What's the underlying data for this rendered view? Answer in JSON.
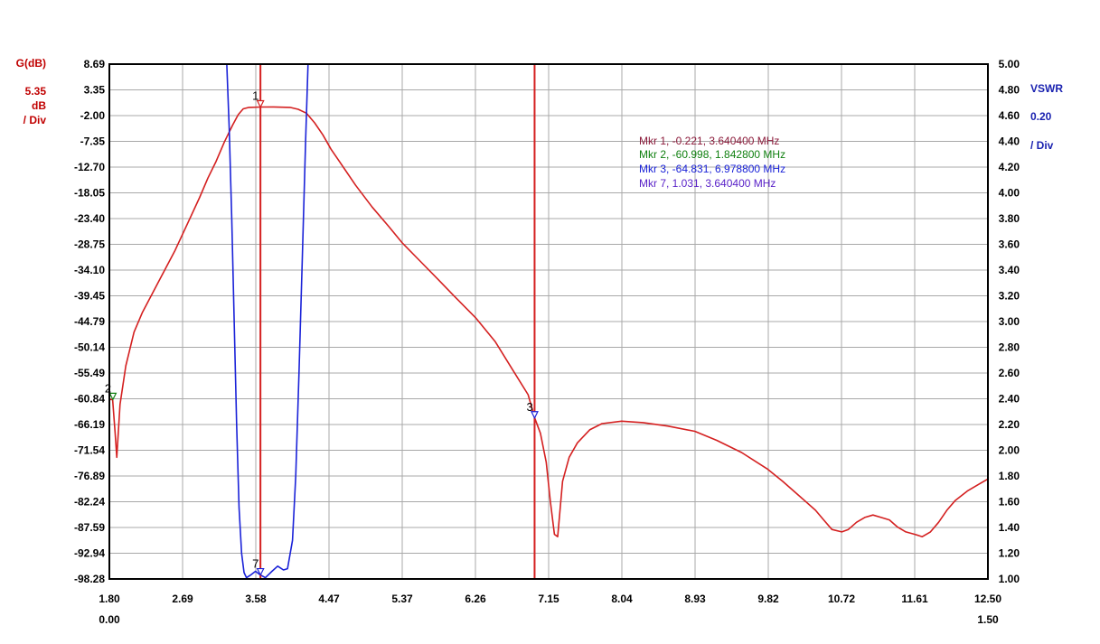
{
  "chart_data": {
    "type": "line",
    "left_axis": {
      "title": "G(dB)",
      "scale_value": "5.35",
      "scale_unit": "dB",
      "scale_div": "/ Div",
      "range": [
        -98.28,
        8.69
      ],
      "ticks": [
        "8.69",
        "3.35",
        "-2.00",
        "-7.35",
        "-12.70",
        "-18.05",
        "-23.40",
        "-28.75",
        "-34.10",
        "-39.45",
        "-44.79",
        "-50.14",
        "-55.49",
        "-60.84",
        "-66.19",
        "-71.54",
        "-76.89",
        "-82.24",
        "-87.59",
        "-92.94",
        "-98.28"
      ]
    },
    "right_axis": {
      "title": "VSWR",
      "scale_value": "0.20",
      "scale_div": "/ Div",
      "range": [
        1.0,
        5.0
      ],
      "ticks": [
        "5.00",
        "4.80",
        "4.60",
        "4.40",
        "4.20",
        "4.00",
        "3.80",
        "3.60",
        "3.40",
        "3.20",
        "3.00",
        "2.80",
        "2.60",
        "2.40",
        "2.20",
        "2.00",
        "1.80",
        "1.60",
        "1.40",
        "1.20",
        "1.00"
      ]
    },
    "x_axis": {
      "range": [
        1.8,
        12.5
      ],
      "ticks": [
        "1.80",
        "2.69",
        "3.58",
        "4.47",
        "5.37",
        "6.26",
        "7.15",
        "8.04",
        "8.93",
        "9.82",
        "10.72",
        "11.61",
        "12.50"
      ],
      "sub_left": "0.00",
      "sub_right": "1.50"
    },
    "grid": true,
    "series": [
      {
        "axis": "left",
        "color": "#d42020",
        "points": [
          [
            1.8,
            -61.0
          ],
          [
            1.84,
            -61.0
          ],
          [
            1.87,
            -68.0
          ],
          [
            1.89,
            -73.0
          ],
          [
            1.93,
            -62.0
          ],
          [
            2.0,
            -54.0
          ],
          [
            2.1,
            -47.0
          ],
          [
            2.2,
            -43.0
          ],
          [
            2.4,
            -36.5
          ],
          [
            2.6,
            -30.0
          ],
          [
            2.75,
            -24.5
          ],
          [
            2.9,
            -19.0
          ],
          [
            3.0,
            -15.0
          ],
          [
            3.1,
            -11.5
          ],
          [
            3.2,
            -7.5
          ],
          [
            3.3,
            -4.0
          ],
          [
            3.37,
            -1.8
          ],
          [
            3.43,
            -0.6
          ],
          [
            3.5,
            -0.3
          ],
          [
            3.64,
            -0.22
          ],
          [
            3.8,
            -0.2
          ],
          [
            4.0,
            -0.3
          ],
          [
            4.1,
            -0.7
          ],
          [
            4.2,
            -1.5
          ],
          [
            4.3,
            -3.5
          ],
          [
            4.4,
            -6.0
          ],
          [
            4.5,
            -9.0
          ],
          [
            4.6,
            -11.5
          ],
          [
            4.8,
            -16.5
          ],
          [
            5.0,
            -21.0
          ],
          [
            5.2,
            -25.0
          ],
          [
            5.37,
            -28.5
          ],
          [
            5.6,
            -32.5
          ],
          [
            5.8,
            -36.0
          ],
          [
            6.0,
            -39.5
          ],
          [
            6.26,
            -44.0
          ],
          [
            6.5,
            -49.0
          ],
          [
            6.7,
            -54.5
          ],
          [
            6.9,
            -60.0
          ],
          [
            6.98,
            -64.83
          ],
          [
            7.05,
            -68.0
          ],
          [
            7.12,
            -74.0
          ],
          [
            7.17,
            -82.0
          ],
          [
            7.22,
            -89.0
          ],
          [
            7.26,
            -89.5
          ],
          [
            7.32,
            -78.0
          ],
          [
            7.4,
            -73.0
          ],
          [
            7.5,
            -70.0
          ],
          [
            7.65,
            -67.3
          ],
          [
            7.8,
            -66.0
          ],
          [
            8.04,
            -65.5
          ],
          [
            8.3,
            -65.8
          ],
          [
            8.6,
            -66.5
          ],
          [
            8.93,
            -67.6
          ],
          [
            9.2,
            -69.5
          ],
          [
            9.5,
            -72.0
          ],
          [
            9.82,
            -75.5
          ],
          [
            10.0,
            -78.0
          ],
          [
            10.2,
            -81.0
          ],
          [
            10.4,
            -84.0
          ],
          [
            10.5,
            -86.0
          ],
          [
            10.6,
            -88.0
          ],
          [
            10.72,
            -88.5
          ],
          [
            10.8,
            -88.0
          ],
          [
            10.9,
            -86.5
          ],
          [
            11.0,
            -85.5
          ],
          [
            11.1,
            -85.0
          ],
          [
            11.2,
            -85.5
          ],
          [
            11.3,
            -86.0
          ],
          [
            11.4,
            -87.5
          ],
          [
            11.5,
            -88.5
          ],
          [
            11.61,
            -89.0
          ],
          [
            11.7,
            -89.5
          ],
          [
            11.8,
            -88.5
          ],
          [
            11.9,
            -86.5
          ],
          [
            12.0,
            -84.0
          ],
          [
            12.1,
            -82.0
          ],
          [
            12.25,
            -80.0
          ],
          [
            12.4,
            -78.5
          ],
          [
            12.5,
            -77.5
          ]
        ]
      },
      {
        "axis": "right",
        "color": "#1a22d8",
        "points": [
          [
            3.23,
            5.0
          ],
          [
            3.26,
            4.5
          ],
          [
            3.29,
            3.8
          ],
          [
            3.32,
            3.0
          ],
          [
            3.35,
            2.2
          ],
          [
            3.38,
            1.55
          ],
          [
            3.41,
            1.2
          ],
          [
            3.44,
            1.05
          ],
          [
            3.47,
            1.01
          ],
          [
            3.52,
            1.03
          ],
          [
            3.58,
            1.06
          ],
          [
            3.64,
            1.031
          ],
          [
            3.7,
            1.01
          ],
          [
            3.78,
            1.06
          ],
          [
            3.85,
            1.1
          ],
          [
            3.92,
            1.07
          ],
          [
            3.97,
            1.08
          ],
          [
            4.03,
            1.3
          ],
          [
            4.07,
            1.8
          ],
          [
            4.11,
            2.6
          ],
          [
            4.15,
            3.5
          ],
          [
            4.19,
            4.4
          ],
          [
            4.22,
            5.0
          ]
        ]
      }
    ],
    "marker_lines": [
      3.64,
      6.9788
    ],
    "markers": [
      {
        "label": "1",
        "x": 3.6404,
        "y": -0.221,
        "axis": "left",
        "color": "#d42020"
      },
      {
        "label": "2",
        "x": 1.8428,
        "y": -60.998,
        "axis": "left",
        "color": "#108010"
      },
      {
        "label": "3",
        "x": 6.9788,
        "y": -64.831,
        "axis": "left",
        "color": "#1a22d8"
      },
      {
        "label": "7",
        "x": 3.6404,
        "y": 1.031,
        "axis": "right",
        "color": "#1a22d8"
      }
    ],
    "legend": {
      "placement": "top-right",
      "entries": [
        {
          "text": "Mkr 1, -0.221, 3.640400 MHz",
          "color": "#8b1a3a"
        },
        {
          "text": "Mkr 2, -60.998, 1.842800 MHz",
          "color": "#108010"
        },
        {
          "text": "Mkr 3, -64.831, 6.978800 MHz",
          "color": "#1a22d8"
        },
        {
          "text": "Mkr 7, 1.031, 3.640400 MHz",
          "color": "#5a22c8"
        }
      ]
    }
  }
}
